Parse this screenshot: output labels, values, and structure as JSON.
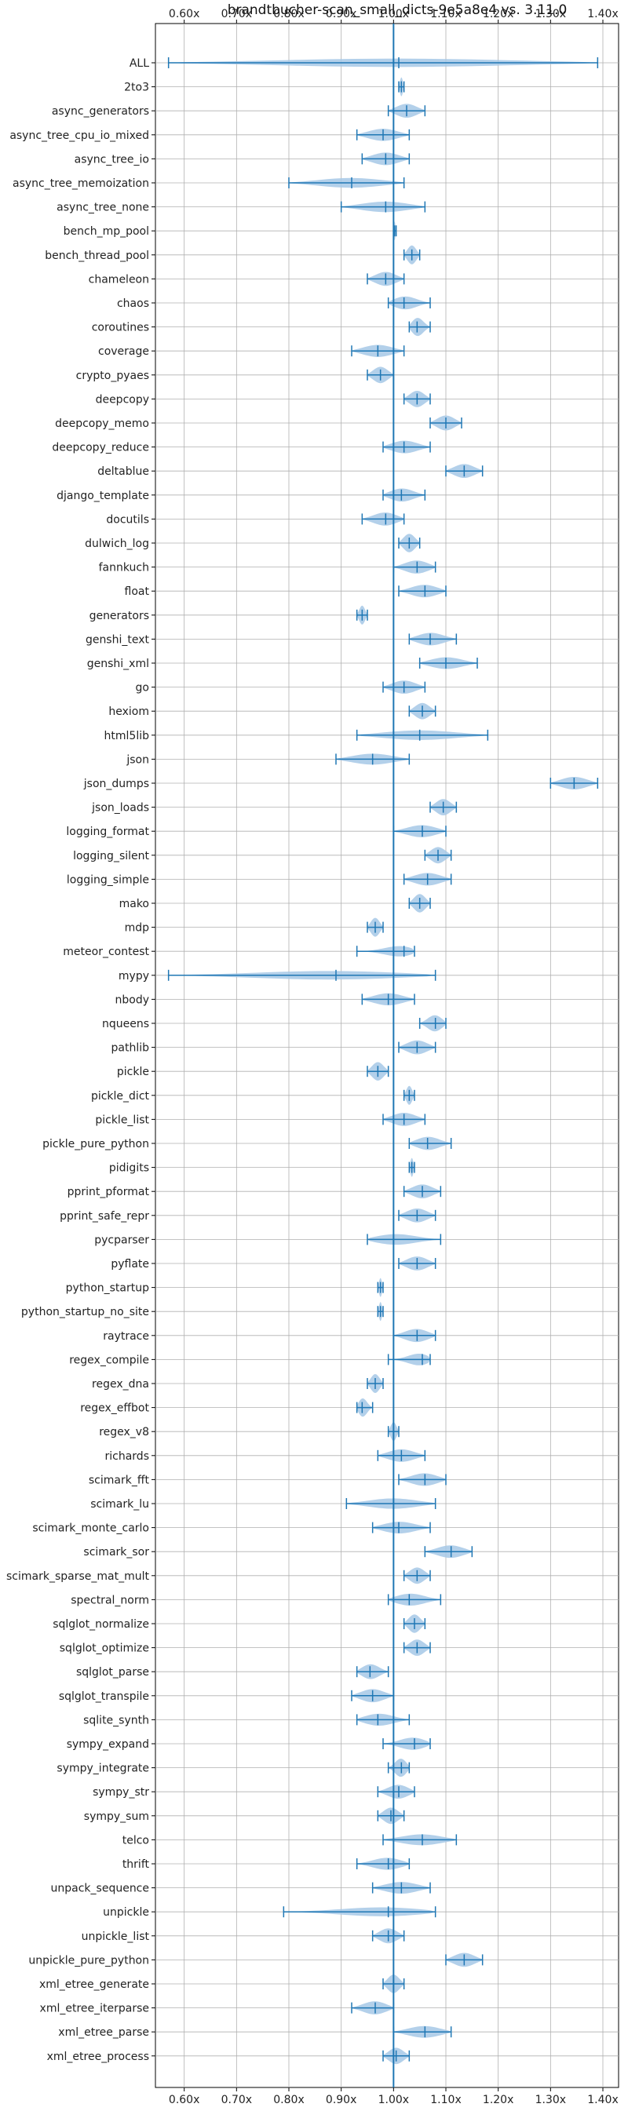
{
  "chart_data": {
    "type": "violin",
    "title": "brandtbucher-scan_small_dicts-9e5a8e4 vs. 3.11.0",
    "xlabel": "",
    "ylabel": "",
    "xlim": [
      0.545,
      1.43
    ],
    "xticks": [
      0.6,
      0.7,
      0.8,
      0.9,
      1.0,
      1.1,
      1.2,
      1.3,
      1.4
    ],
    "xtick_labels": [
      "0.60x",
      "0.70x",
      "0.80x",
      "0.90x",
      "1.00x",
      "1.10x",
      "1.20x",
      "1.30x",
      "1.40x"
    ],
    "reference_line": 1.0,
    "grid": true,
    "colors": {
      "violin": "#a6c8e6",
      "line": "#1f77b4",
      "grid": "#b0b0b0",
      "reference": "#1f77b4"
    },
    "benchmarks": [
      {
        "name": "ALL",
        "min": 0.57,
        "max": 1.39,
        "median": 1.01
      },
      {
        "name": "2to3",
        "min": 1.01,
        "max": 1.02,
        "median": 1.015
      },
      {
        "name": "async_generators",
        "min": 0.99,
        "max": 1.06,
        "median": 1.025
      },
      {
        "name": "async_tree_cpu_io_mixed",
        "min": 0.93,
        "max": 1.03,
        "median": 0.98
      },
      {
        "name": "async_tree_io",
        "min": 0.94,
        "max": 1.03,
        "median": 0.985
      },
      {
        "name": "async_tree_memoization",
        "min": 0.8,
        "max": 1.02,
        "median": 0.92
      },
      {
        "name": "async_tree_none",
        "min": 0.9,
        "max": 1.06,
        "median": 0.985
      },
      {
        "name": "bench_mp_pool",
        "min": 1.0,
        "max": 1.005,
        "median": 1.002
      },
      {
        "name": "bench_thread_pool",
        "min": 1.02,
        "max": 1.05,
        "median": 1.035
      },
      {
        "name": "chameleon",
        "min": 0.95,
        "max": 1.02,
        "median": 0.985
      },
      {
        "name": "chaos",
        "min": 0.99,
        "max": 1.07,
        "median": 1.02
      },
      {
        "name": "coroutines",
        "min": 1.03,
        "max": 1.07,
        "median": 1.045
      },
      {
        "name": "coverage",
        "min": 0.92,
        "max": 1.02,
        "median": 0.97
      },
      {
        "name": "crypto_pyaes",
        "min": 0.95,
        "max": 1.0,
        "median": 0.975
      },
      {
        "name": "deepcopy",
        "min": 1.02,
        "max": 1.07,
        "median": 1.045
      },
      {
        "name": "deepcopy_memo",
        "min": 1.07,
        "max": 1.13,
        "median": 1.1
      },
      {
        "name": "deepcopy_reduce",
        "min": 0.98,
        "max": 1.07,
        "median": 1.02
      },
      {
        "name": "deltablue",
        "min": 1.1,
        "max": 1.17,
        "median": 1.135
      },
      {
        "name": "django_template",
        "min": 0.98,
        "max": 1.06,
        "median": 1.015
      },
      {
        "name": "docutils",
        "min": 0.94,
        "max": 1.02,
        "median": 0.985
      },
      {
        "name": "dulwich_log",
        "min": 1.01,
        "max": 1.05,
        "median": 1.03
      },
      {
        "name": "fannkuch",
        "min": 1.0,
        "max": 1.08,
        "median": 1.045
      },
      {
        "name": "float",
        "min": 1.01,
        "max": 1.1,
        "median": 1.06
      },
      {
        "name": "generators",
        "min": 0.93,
        "max": 0.95,
        "median": 0.94
      },
      {
        "name": "genshi_text",
        "min": 1.03,
        "max": 1.12,
        "median": 1.07
      },
      {
        "name": "genshi_xml",
        "min": 1.05,
        "max": 1.16,
        "median": 1.1
      },
      {
        "name": "go",
        "min": 0.98,
        "max": 1.06,
        "median": 1.02
      },
      {
        "name": "hexiom",
        "min": 1.03,
        "max": 1.08,
        "median": 1.055
      },
      {
        "name": "html5lib",
        "min": 0.93,
        "max": 1.18,
        "median": 1.05
      },
      {
        "name": "json",
        "min": 0.89,
        "max": 1.03,
        "median": 0.96
      },
      {
        "name": "json_dumps",
        "min": 1.3,
        "max": 1.39,
        "median": 1.345
      },
      {
        "name": "json_loads",
        "min": 1.07,
        "max": 1.12,
        "median": 1.095
      },
      {
        "name": "logging_format",
        "min": 1.0,
        "max": 1.1,
        "median": 1.055
      },
      {
        "name": "logging_silent",
        "min": 1.06,
        "max": 1.11,
        "median": 1.085
      },
      {
        "name": "logging_simple",
        "min": 1.02,
        "max": 1.11,
        "median": 1.065
      },
      {
        "name": "mako",
        "min": 1.03,
        "max": 1.07,
        "median": 1.05
      },
      {
        "name": "mdp",
        "min": 0.95,
        "max": 0.98,
        "median": 0.965
      },
      {
        "name": "meteor_contest",
        "min": 0.93,
        "max": 1.04,
        "median": 1.02
      },
      {
        "name": "mypy",
        "min": 0.57,
        "max": 1.08,
        "median": 0.89
      },
      {
        "name": "nbody",
        "min": 0.94,
        "max": 1.04,
        "median": 0.99
      },
      {
        "name": "nqueens",
        "min": 1.05,
        "max": 1.1,
        "median": 1.08
      },
      {
        "name": "pathlib",
        "min": 1.01,
        "max": 1.08,
        "median": 1.045
      },
      {
        "name": "pickle",
        "min": 0.95,
        "max": 0.99,
        "median": 0.97
      },
      {
        "name": "pickle_dict",
        "min": 1.02,
        "max": 1.04,
        "median": 1.03
      },
      {
        "name": "pickle_list",
        "min": 0.98,
        "max": 1.06,
        "median": 1.02
      },
      {
        "name": "pickle_pure_python",
        "min": 1.03,
        "max": 1.11,
        "median": 1.065
      },
      {
        "name": "pidigits",
        "min": 1.03,
        "max": 1.04,
        "median": 1.035
      },
      {
        "name": "pprint_pformat",
        "min": 1.02,
        "max": 1.09,
        "median": 1.055
      },
      {
        "name": "pprint_safe_repr",
        "min": 1.01,
        "max": 1.08,
        "median": 1.045
      },
      {
        "name": "pycparser",
        "min": 0.95,
        "max": 1.09,
        "median": 1.0
      },
      {
        "name": "pyflate",
        "min": 1.01,
        "max": 1.08,
        "median": 1.045
      },
      {
        "name": "python_startup",
        "min": 0.97,
        "max": 0.98,
        "median": 0.975
      },
      {
        "name": "python_startup_no_site",
        "min": 0.97,
        "max": 0.98,
        "median": 0.975
      },
      {
        "name": "raytrace",
        "min": 1.0,
        "max": 1.08,
        "median": 1.045
      },
      {
        "name": "regex_compile",
        "min": 0.99,
        "max": 1.07,
        "median": 1.055
      },
      {
        "name": "regex_dna",
        "min": 0.95,
        "max": 0.98,
        "median": 0.965
      },
      {
        "name": "regex_effbot",
        "min": 0.93,
        "max": 0.96,
        "median": 0.94
      },
      {
        "name": "regex_v8",
        "min": 0.99,
        "max": 1.01,
        "median": 1.0
      },
      {
        "name": "richards",
        "min": 0.97,
        "max": 1.06,
        "median": 1.015
      },
      {
        "name": "scimark_fft",
        "min": 1.01,
        "max": 1.1,
        "median": 1.06
      },
      {
        "name": "scimark_lu",
        "min": 0.91,
        "max": 1.08,
        "median": 1.0
      },
      {
        "name": "scimark_monte_carlo",
        "min": 0.96,
        "max": 1.07,
        "median": 1.01
      },
      {
        "name": "scimark_sor",
        "min": 1.06,
        "max": 1.15,
        "median": 1.11
      },
      {
        "name": "scimark_sparse_mat_mult",
        "min": 1.02,
        "max": 1.07,
        "median": 1.045
      },
      {
        "name": "spectral_norm",
        "min": 0.99,
        "max": 1.09,
        "median": 1.03
      },
      {
        "name": "sqlglot_normalize",
        "min": 1.02,
        "max": 1.06,
        "median": 1.04
      },
      {
        "name": "sqlglot_optimize",
        "min": 1.02,
        "max": 1.07,
        "median": 1.045
      },
      {
        "name": "sqlglot_parse",
        "min": 0.93,
        "max": 0.99,
        "median": 0.955
      },
      {
        "name": "sqlglot_transpile",
        "min": 0.92,
        "max": 1.0,
        "median": 0.96
      },
      {
        "name": "sqlite_synth",
        "min": 0.93,
        "max": 1.03,
        "median": 0.97
      },
      {
        "name": "sympy_expand",
        "min": 0.98,
        "max": 1.07,
        "median": 1.04
      },
      {
        "name": "sympy_integrate",
        "min": 0.99,
        "max": 1.03,
        "median": 1.015
      },
      {
        "name": "sympy_str",
        "min": 0.97,
        "max": 1.04,
        "median": 1.01
      },
      {
        "name": "sympy_sum",
        "min": 0.97,
        "max": 1.02,
        "median": 0.995
      },
      {
        "name": "telco",
        "min": 0.98,
        "max": 1.12,
        "median": 1.055
      },
      {
        "name": "thrift",
        "min": 0.93,
        "max": 1.03,
        "median": 0.99
      },
      {
        "name": "unpack_sequence",
        "min": 0.96,
        "max": 1.07,
        "median": 1.015
      },
      {
        "name": "unpickle",
        "min": 0.79,
        "max": 1.08,
        "median": 0.99
      },
      {
        "name": "unpickle_list",
        "min": 0.96,
        "max": 1.02,
        "median": 0.99
      },
      {
        "name": "unpickle_pure_python",
        "min": 1.1,
        "max": 1.17,
        "median": 1.135
      },
      {
        "name": "xml_etree_generate",
        "min": 0.98,
        "max": 1.02,
        "median": 1.0
      },
      {
        "name": "xml_etree_iterparse",
        "min": 0.92,
        "max": 1.0,
        "median": 0.965
      },
      {
        "name": "xml_etree_parse",
        "min": 1.0,
        "max": 1.11,
        "median": 1.06
      },
      {
        "name": "xml_etree_process",
        "min": 0.98,
        "max": 1.03,
        "median": 1.005
      }
    ]
  }
}
